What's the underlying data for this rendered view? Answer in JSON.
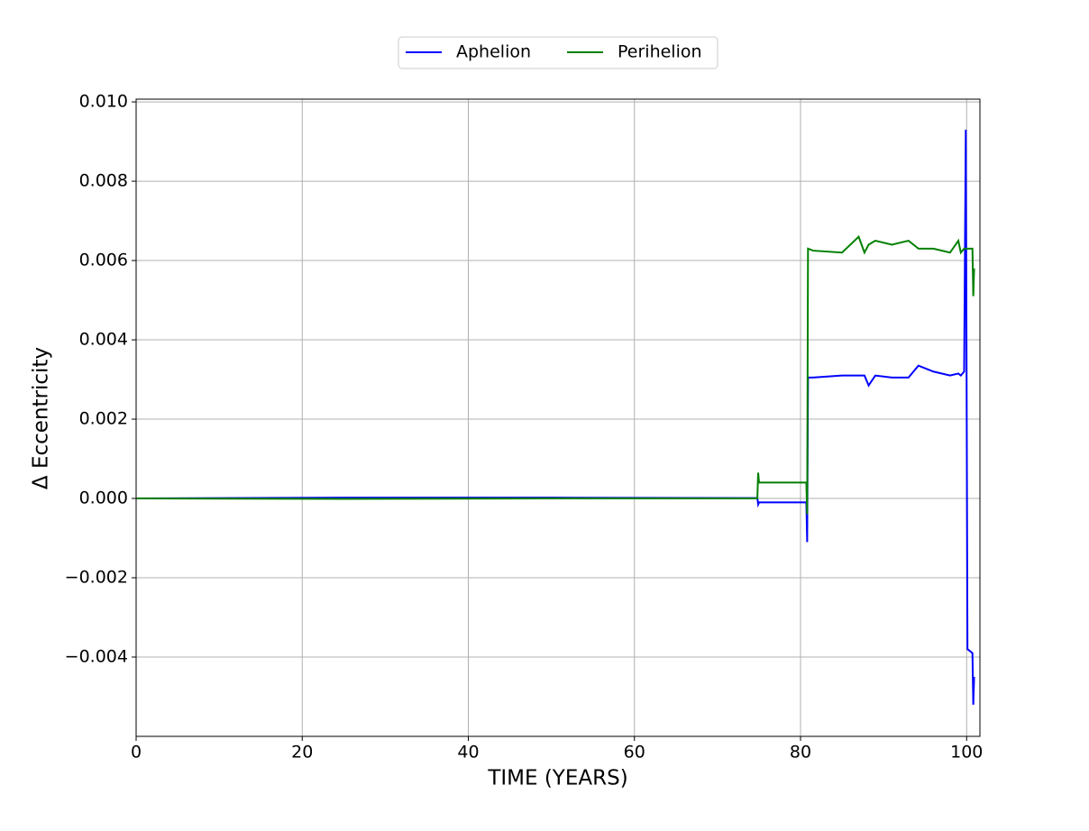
{
  "chart_data": {
    "type": "line",
    "xlabel": "TIME (YEARS)",
    "ylabel": "Δ Eccentricity",
    "legend": "upper center",
    "grid": true,
    "x": [
      0,
      25,
      50,
      74.8,
      74.9,
      75,
      80.7,
      80.8,
      80.9,
      81.5,
      85,
      87,
      87.7,
      88.2,
      89,
      91,
      93,
      94.2,
      96,
      98,
      99,
      99.3,
      99.7,
      99.9,
      100.1,
      100.7,
      100.8,
      100.9
    ],
    "series": [
      {
        "name": "Aphelion",
        "color": "#0000ff",
        "values": [
          0,
          2e-05,
          2e-05,
          1e-05,
          -0.00015,
          -0.0001,
          -0.0001,
          -0.0011,
          0.00305,
          0.00305,
          0.0031,
          0.0031,
          0.0031,
          0.00285,
          0.0031,
          0.00305,
          0.00305,
          0.00335,
          0.0032,
          0.0031,
          0.00315,
          0.0031,
          0.0032,
          0.0093,
          -0.0038,
          -0.0039,
          -0.0052,
          -0.0045
        ]
      },
      {
        "name": "Perihelion",
        "color": "#008000",
        "values": [
          0,
          -1e-05,
          0,
          0,
          0.00065,
          0.0004,
          0.0004,
          -0.0004,
          0.0063,
          0.00625,
          0.0062,
          0.0066,
          0.0062,
          0.0064,
          0.0065,
          0.0064,
          0.0065,
          0.0063,
          0.0063,
          0.0062,
          0.0065,
          0.0062,
          0.0063,
          0.0063,
          0.0063,
          0.0063,
          0.0051,
          0.0058
        ]
      }
    ],
    "xlim": [
      0,
      101.6
    ],
    "xticks": [
      0,
      20,
      40,
      60,
      80,
      100
    ],
    "ylim": [
      -0.006,
      0.01007
    ],
    "yticks": [
      {
        "value": -0.004,
        "label": "−0.004"
      },
      {
        "value": -0.002,
        "label": "−0.002"
      },
      {
        "value": 0,
        "label": "0.000"
      },
      {
        "value": 0.002,
        "label": "0.002"
      },
      {
        "value": 0.004,
        "label": "0.004"
      },
      {
        "value": 0.006,
        "label": "0.006"
      },
      {
        "value": 0.008,
        "label": "0.008"
      },
      {
        "value": 0.01,
        "label": "0.010"
      }
    ]
  }
}
